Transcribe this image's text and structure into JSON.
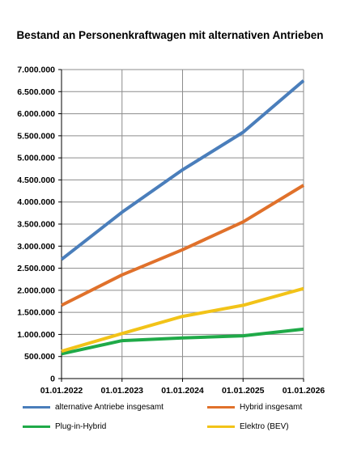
{
  "chart_data": {
    "type": "line",
    "title": "Bestand an Personenkraftwagen mit alternativen Antrieben",
    "xlabel": "",
    "ylabel": "",
    "categories": [
      "01.01.2022",
      "01.01.2023",
      "01.01.2024",
      "01.01.2025",
      "01.01.2026"
    ],
    "ylim": [
      0,
      7000000
    ],
    "yticks": [
      0,
      500000,
      1000000,
      1500000,
      2000000,
      2500000,
      3000000,
      3500000,
      4000000,
      4500000,
      5000000,
      5500000,
      6000000,
      6500000,
      7000000
    ],
    "ytick_labels": [
      "0",
      "500.000",
      "1.000.000",
      "1.500.000",
      "2.000.000",
      "2.500.000",
      "3.000.000",
      "3.500.000",
      "4.000.000",
      "4.500.000",
      "5.000.000",
      "5.500.000",
      "6.000.000",
      "6.500.000",
      "7.000.000"
    ],
    "grid": true,
    "legend_position": "bottom",
    "series": [
      {
        "name": "alternative Antriebe insgesamt",
        "color": "#4a7ebb",
        "values": [
          2700000,
          3770000,
          4730000,
          5580000,
          6750000
        ]
      },
      {
        "name": "Hybrid insgesamt",
        "color": "#e0712b",
        "values": [
          1660000,
          2350000,
          2920000,
          3550000,
          4380000
        ]
      },
      {
        "name": "Plug-in-Hybrid",
        "color": "#1faa48",
        "values": [
          560000,
          860000,
          920000,
          970000,
          1120000
        ]
      },
      {
        "name": "Elektro (BEV)",
        "color": "#f2c318",
        "values": [
          620000,
          1020000,
          1410000,
          1660000,
          2040000
        ]
      }
    ]
  }
}
